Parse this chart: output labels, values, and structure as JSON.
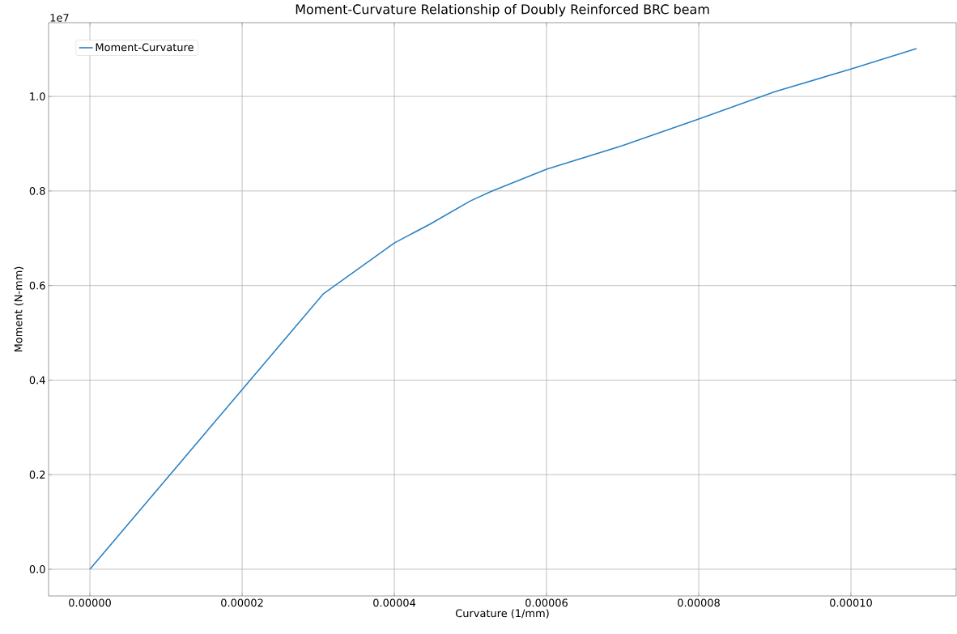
{
  "chart_data": {
    "type": "line",
    "title": "Moment-Curvature Relationship of Doubly Reinforced BRC beam",
    "xlabel": "Curvature (1/mm)",
    "ylabel": "Moment (N-mm)",
    "annotations": [
      "1e7"
    ],
    "x": [
      0,
      3.064e-05,
      4e-05,
      4.47e-05,
      5e-05,
      5.27e-05,
      6e-05,
      7e-05,
      8e-05,
      9e-05,
      0.0001,
      0.00010862
    ],
    "series": [
      {
        "name": "Moment-Curvature",
        "color": "#2b83c4",
        "values": [
          0,
          0.582,
          0.69,
          0.73,
          0.779,
          0.799,
          0.846,
          0.896,
          0.952,
          1.01,
          1.058,
          1.101
        ]
      }
    ],
    "xlim": [
      -5.43e-06,
      0.00011383
    ],
    "ylim": [
      -0.0565,
      1.156
    ],
    "xticks": [
      {
        "value": 0,
        "label": "0.00000"
      },
      {
        "value": 2e-05,
        "label": "0.00002"
      },
      {
        "value": 4e-05,
        "label": "0.00004"
      },
      {
        "value": 6e-05,
        "label": "0.00006"
      },
      {
        "value": 8e-05,
        "label": "0.00008"
      },
      {
        "value": 0.0001,
        "label": "0.00010"
      }
    ],
    "yticks": [
      {
        "value": 0,
        "label": "0.0"
      },
      0.2,
      0.4,
      0.6,
      0.8,
      {
        "value": 1,
        "label": "1.0"
      }
    ],
    "grid": true,
    "legend": "top left"
  }
}
